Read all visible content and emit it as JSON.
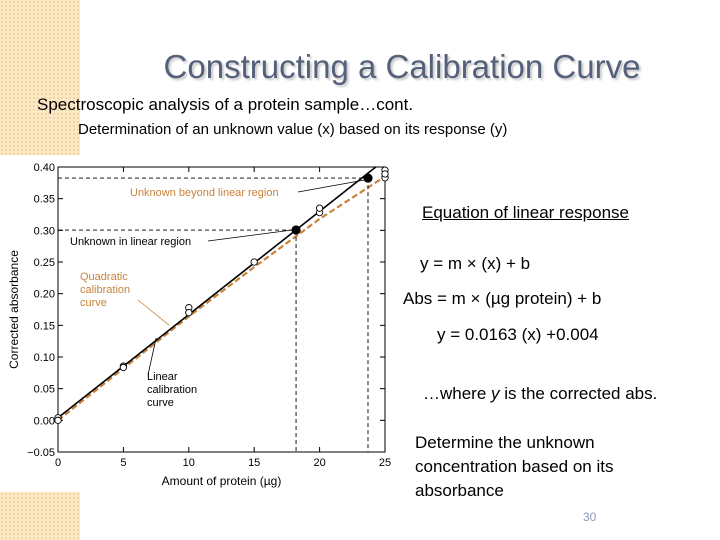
{
  "slide": {
    "title": "Constructing a Calibration Curve",
    "subtitle": "Spectroscopic analysis of a protein sample…cont.",
    "subheading": "Determination of an unknown value (x) based on its response (y)",
    "equation_heading": "Equation of linear response",
    "equation_general": "y  = m × (x) + b",
    "equation_abs": "Abs = m × (µg protein) + b",
    "equation_fit": "y = 0.0163 (x) +0.004",
    "note_prefix": "…where ",
    "note_var": "y",
    "note_suffix": " is the corrected abs.",
    "task": "Determine the unknown concentration based on its absorbance",
    "page_number": "30"
  },
  "chart_data": {
    "type": "line",
    "xlabel": "Amount of protein (µg)",
    "ylabel": "Corrected absorbance",
    "xlim": [
      0,
      25
    ],
    "ylim": [
      -0.05,
      0.4
    ],
    "x_ticks": [
      0,
      5,
      10,
      15,
      20,
      25
    ],
    "x_tick_labels": [
      "0",
      "5",
      "10",
      "15",
      "20",
      "25"
    ],
    "y_ticks": [
      -0.05,
      0,
      0.05,
      0.1,
      0.15,
      0.2,
      0.25,
      0.3,
      0.35,
      0.4
    ],
    "y_tick_labels": [
      "−0.05",
      "0.00",
      "0.05",
      "0.10",
      "0.15",
      "0.20",
      "0.25",
      "0.30",
      "0.35",
      "0.40"
    ],
    "grid": false,
    "points": [
      {
        "x": 0,
        "y": 0.004
      },
      {
        "x": 0,
        "y": 0.0
      },
      {
        "x": 5,
        "y": 0.0855
      },
      {
        "x": 5,
        "y": 0.0835
      },
      {
        "x": 10,
        "y": 0.178
      },
      {
        "x": 10,
        "y": 0.17
      },
      {
        "x": 15,
        "y": 0.25
      },
      {
        "x": 20,
        "y": 0.328
      },
      {
        "x": 20,
        "y": 0.335
      },
      {
        "x": 25,
        "y": 0.395
      },
      {
        "x": 25,
        "y": 0.383
      },
      {
        "x": 25,
        "y": 0.389
      }
    ],
    "linear_fit": {
      "slope": 0.0163,
      "intercept": 0.004,
      "x_range": [
        0,
        25
      ]
    },
    "quadratic_fit": [
      [
        0,
        0.0
      ],
      [
        5,
        0.082
      ],
      [
        10,
        0.164
      ],
      [
        15,
        0.242
      ],
      [
        20,
        0.318
      ],
      [
        25,
        0.385
      ]
    ],
    "unknowns": [
      {
        "label": "Unknown in linear region",
        "x": 18.2,
        "y": 0.3005
      },
      {
        "label": "Unknown beyond linear region",
        "x": 23.7,
        "y": 0.3825
      }
    ],
    "annotations": [
      {
        "text": [
          "Unknown beyond linear region"
        ],
        "color": "#c8823a"
      },
      {
        "text": [
          "Unknown in linear region"
        ],
        "color": "#000000"
      },
      {
        "text": [
          "Quadratic",
          "calibration",
          "curve"
        ],
        "color": "#c8823a"
      },
      {
        "text": [
          "Linear",
          "calibration",
          "curve"
        ],
        "color": "#000000"
      }
    ]
  }
}
